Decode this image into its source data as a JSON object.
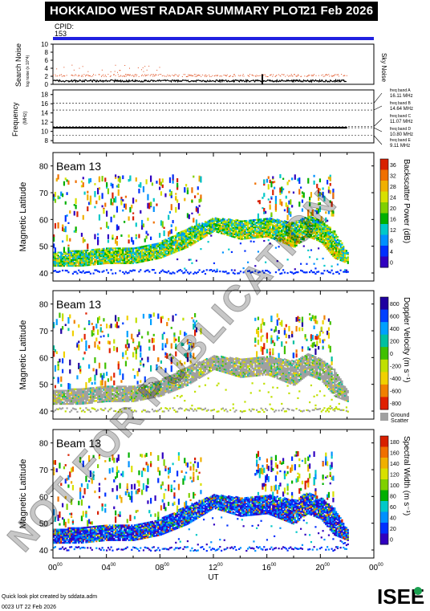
{
  "header": {
    "title": "HOKKAIDO WEST RADAR SUMMARY PLOT",
    "date": "21 Feb 2026"
  },
  "cpid": {
    "label": "CPID:",
    "value": "153"
  },
  "noise_panel": {
    "ylabel": "Search Noise",
    "ylabel_sub": "log noise (x 10^4)",
    "yticks": [
      "0",
      "2",
      "4",
      "6",
      "8",
      "10"
    ],
    "right_label": "Sky Noise"
  },
  "freq_panel": {
    "ylabel": "Frequency",
    "unit": "(MHz)",
    "yticks": [
      "8",
      "10",
      "12",
      "14",
      "16",
      "18"
    ],
    "bands": [
      {
        "label": "freq band A",
        "value": "16.11 MHz"
      },
      {
        "label": "freq band B",
        "value": "14.64 MHz"
      },
      {
        "label": "freq band C",
        "value": "11.07 MHz"
      },
      {
        "label": "freq band D",
        "value": "10.80 MHz"
      },
      {
        "label": "freq band E",
        "value": "9.11 MHz"
      }
    ]
  },
  "panels": [
    {
      "beam": "Beam 13",
      "ylabel": "Magnetic Latitude",
      "cbar_label": "Backscatter Power (dB)",
      "cbar_ticks": [
        "0",
        "4",
        "8",
        "12",
        "16",
        "20",
        "24",
        "28",
        "32",
        "36"
      ],
      "colors": [
        "#3000c0",
        "#0030ff",
        "#0090ff",
        "#00c8c8",
        "#00b000",
        "#80d000",
        "#d8e000",
        "#f0b000",
        "#f07000",
        "#d82000"
      ]
    },
    {
      "beam": "Beam 13",
      "ylabel": "Magnetic Latitude",
      "cbar_label": "Doppler Velocity (m s⁻¹)",
      "cbar_ticks": [
        "800",
        "600",
        "400",
        "200",
        "0",
        "-200",
        "-400",
        "-600",
        "-800"
      ],
      "ground_label": "Ground",
      "ground_label2": "Scatter",
      "colors": [
        "#2000a0",
        "#0040ff",
        "#00a0ff",
        "#00c0a0",
        "#40c000",
        "#c0e000",
        "#f0d000",
        "#f08000",
        "#e02000"
      ]
    },
    {
      "beam": "Beam 13",
      "ylabel": "Magnetic Latitude",
      "cbar_label": "Spectral Width (m s⁻¹)",
      "cbar_ticks": [
        "0",
        "20",
        "40",
        "60",
        "80",
        "100",
        "120",
        "140",
        "160",
        "180"
      ],
      "colors": [
        "#3000c0",
        "#0030ff",
        "#0090ff",
        "#00c8c8",
        "#00b000",
        "#80d000",
        "#d8e000",
        "#f0b000",
        "#f07000",
        "#d82000"
      ]
    }
  ],
  "lat_ticks": [
    "40",
    "50",
    "60",
    "70",
    "80"
  ],
  "xaxis": {
    "label": "UT",
    "ticks": [
      "00",
      "04",
      "08",
      "12",
      "16",
      "20",
      "00"
    ],
    "tick_sup": "00"
  },
  "footer": {
    "line1": "Quick look plot created by sddata.adm",
    "line2": "0023 UT 22 Feb 2026"
  },
  "logo": "ISEE",
  "watermark": "NOT FOR PUBLICATION",
  "chart_data": {
    "type": "heatmap",
    "x_range_hours": [
      0,
      24
    ],
    "data_end_hour": 22,
    "lat_range": [
      37,
      85
    ],
    "noise_range": [
      0,
      10
    ],
    "freq_range": [
      7.5,
      19
    ],
    "tx_frequency_mhz": 10.8,
    "scatter_band_upper_lat": [
      [
        0,
        47
      ],
      [
        2,
        48
      ],
      [
        4,
        49
      ],
      [
        6,
        49
      ],
      [
        8,
        51
      ],
      [
        10,
        56
      ],
      [
        12,
        60
      ],
      [
        14,
        59
      ],
      [
        16,
        60
      ],
      [
        18,
        58
      ],
      [
        19,
        61
      ],
      [
        20,
        59
      ],
      [
        21,
        55
      ],
      [
        22,
        47
      ]
    ],
    "scatter_band_lower_lat": [
      [
        0,
        43
      ],
      [
        2,
        43
      ],
      [
        4,
        44
      ],
      [
        6,
        44
      ],
      [
        8,
        46
      ],
      [
        10,
        50
      ],
      [
        12,
        56
      ],
      [
        14,
        53
      ],
      [
        16,
        54
      ],
      [
        18,
        50
      ],
      [
        19,
        54
      ],
      [
        20,
        52
      ],
      [
        21,
        46
      ],
      [
        22,
        44
      ]
    ]
  }
}
